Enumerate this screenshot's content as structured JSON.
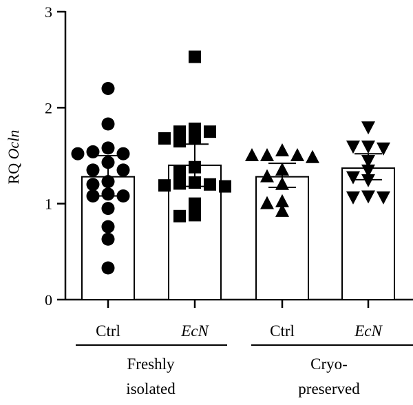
{
  "chart_data": {
    "type": "bar",
    "ylabel_prefix": "RQ ",
    "ylabel_gene": "Ocln",
    "ylim": [
      0,
      3
    ],
    "yticks": [
      "0",
      "1",
      "2",
      "3"
    ],
    "categories": [
      {
        "label": "Ctrl",
        "italic": false,
        "group": 0,
        "marker": "circle",
        "mean": 1.28,
        "error": [
          1.08,
          1.5
        ],
        "points": [
          2.2,
          1.83,
          1.52,
          1.54,
          1.58,
          1.52,
          1.43,
          1.35,
          1.35,
          1.23,
          1.2,
          1.1,
          1.08,
          1.08,
          0.95,
          0.76,
          0.63,
          0.33
        ]
      },
      {
        "label": "EcN",
        "italic": true,
        "group": 0,
        "marker": "square",
        "mean": 1.4,
        "error": [
          1.18,
          1.62
        ],
        "points": [
          2.53,
          1.78,
          1.75,
          1.75,
          1.68,
          1.69,
          1.65,
          1.38,
          1.33,
          1.22,
          1.21,
          1.2,
          1.19,
          1.18,
          1.0,
          0.87,
          0.88
        ]
      },
      {
        "label": "Ctrl",
        "italic": false,
        "group": 1,
        "marker": "triangle-up",
        "mean": 1.28,
        "error": [
          1.17,
          1.42
        ],
        "points": [
          1.55,
          1.5,
          1.48,
          1.5,
          1.5,
          1.35,
          1.28,
          1.2,
          1.02,
          1.0,
          0.92
        ]
      },
      {
        "label": "EcN",
        "italic": true,
        "group": 1,
        "marker": "triangle-down",
        "mean": 1.37,
        "error": [
          1.25,
          1.52
        ],
        "points": [
          1.8,
          1.6,
          1.6,
          1.58,
          1.45,
          1.35,
          1.28,
          1.25,
          1.08,
          1.07,
          1.07
        ]
      }
    ],
    "groups": [
      {
        "line1": "Freshly",
        "line2": "isolated"
      },
      {
        "line1": "Cryo-",
        "line2": "preserved"
      }
    ]
  }
}
